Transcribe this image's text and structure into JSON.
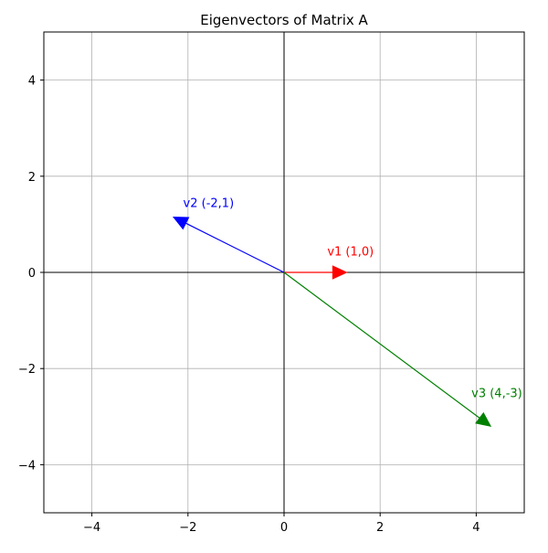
{
  "chart_data": {
    "type": "quiver",
    "title": "Eigenvectors of Matrix A",
    "xlabel": "",
    "ylabel": "",
    "xlim": [
      -5,
      5
    ],
    "ylim": [
      -5,
      5
    ],
    "xticks": [
      -4,
      -2,
      0,
      2,
      4
    ],
    "yticks": [
      -4,
      -2,
      0,
      2,
      4
    ],
    "xtick_labels": [
      "−4",
      "−2",
      "0",
      "2",
      "4"
    ],
    "ytick_labels": [
      "−4",
      "−2",
      "0",
      "2",
      "4"
    ],
    "grid": true,
    "axes_lines": true,
    "vectors": [
      {
        "label": "v1 (1,0)",
        "origin": [
          0,
          0
        ],
        "components": [
          1.3,
          0
        ],
        "label_pos": [
          0.9,
          0.45
        ],
        "color": "#ff0000"
      },
      {
        "label": "v2 (-2,1)",
        "origin": [
          0,
          0
        ],
        "components": [
          -2.3,
          1.15
        ],
        "label_pos": [
          -2.1,
          1.45
        ],
        "color": "#0000ff"
      },
      {
        "label": "v3 (4,-3)",
        "origin": [
          0,
          0
        ],
        "components": [
          4.3,
          -3.2
        ],
        "label_pos": [
          3.9,
          -2.5
        ],
        "color": "#008000"
      }
    ]
  }
}
